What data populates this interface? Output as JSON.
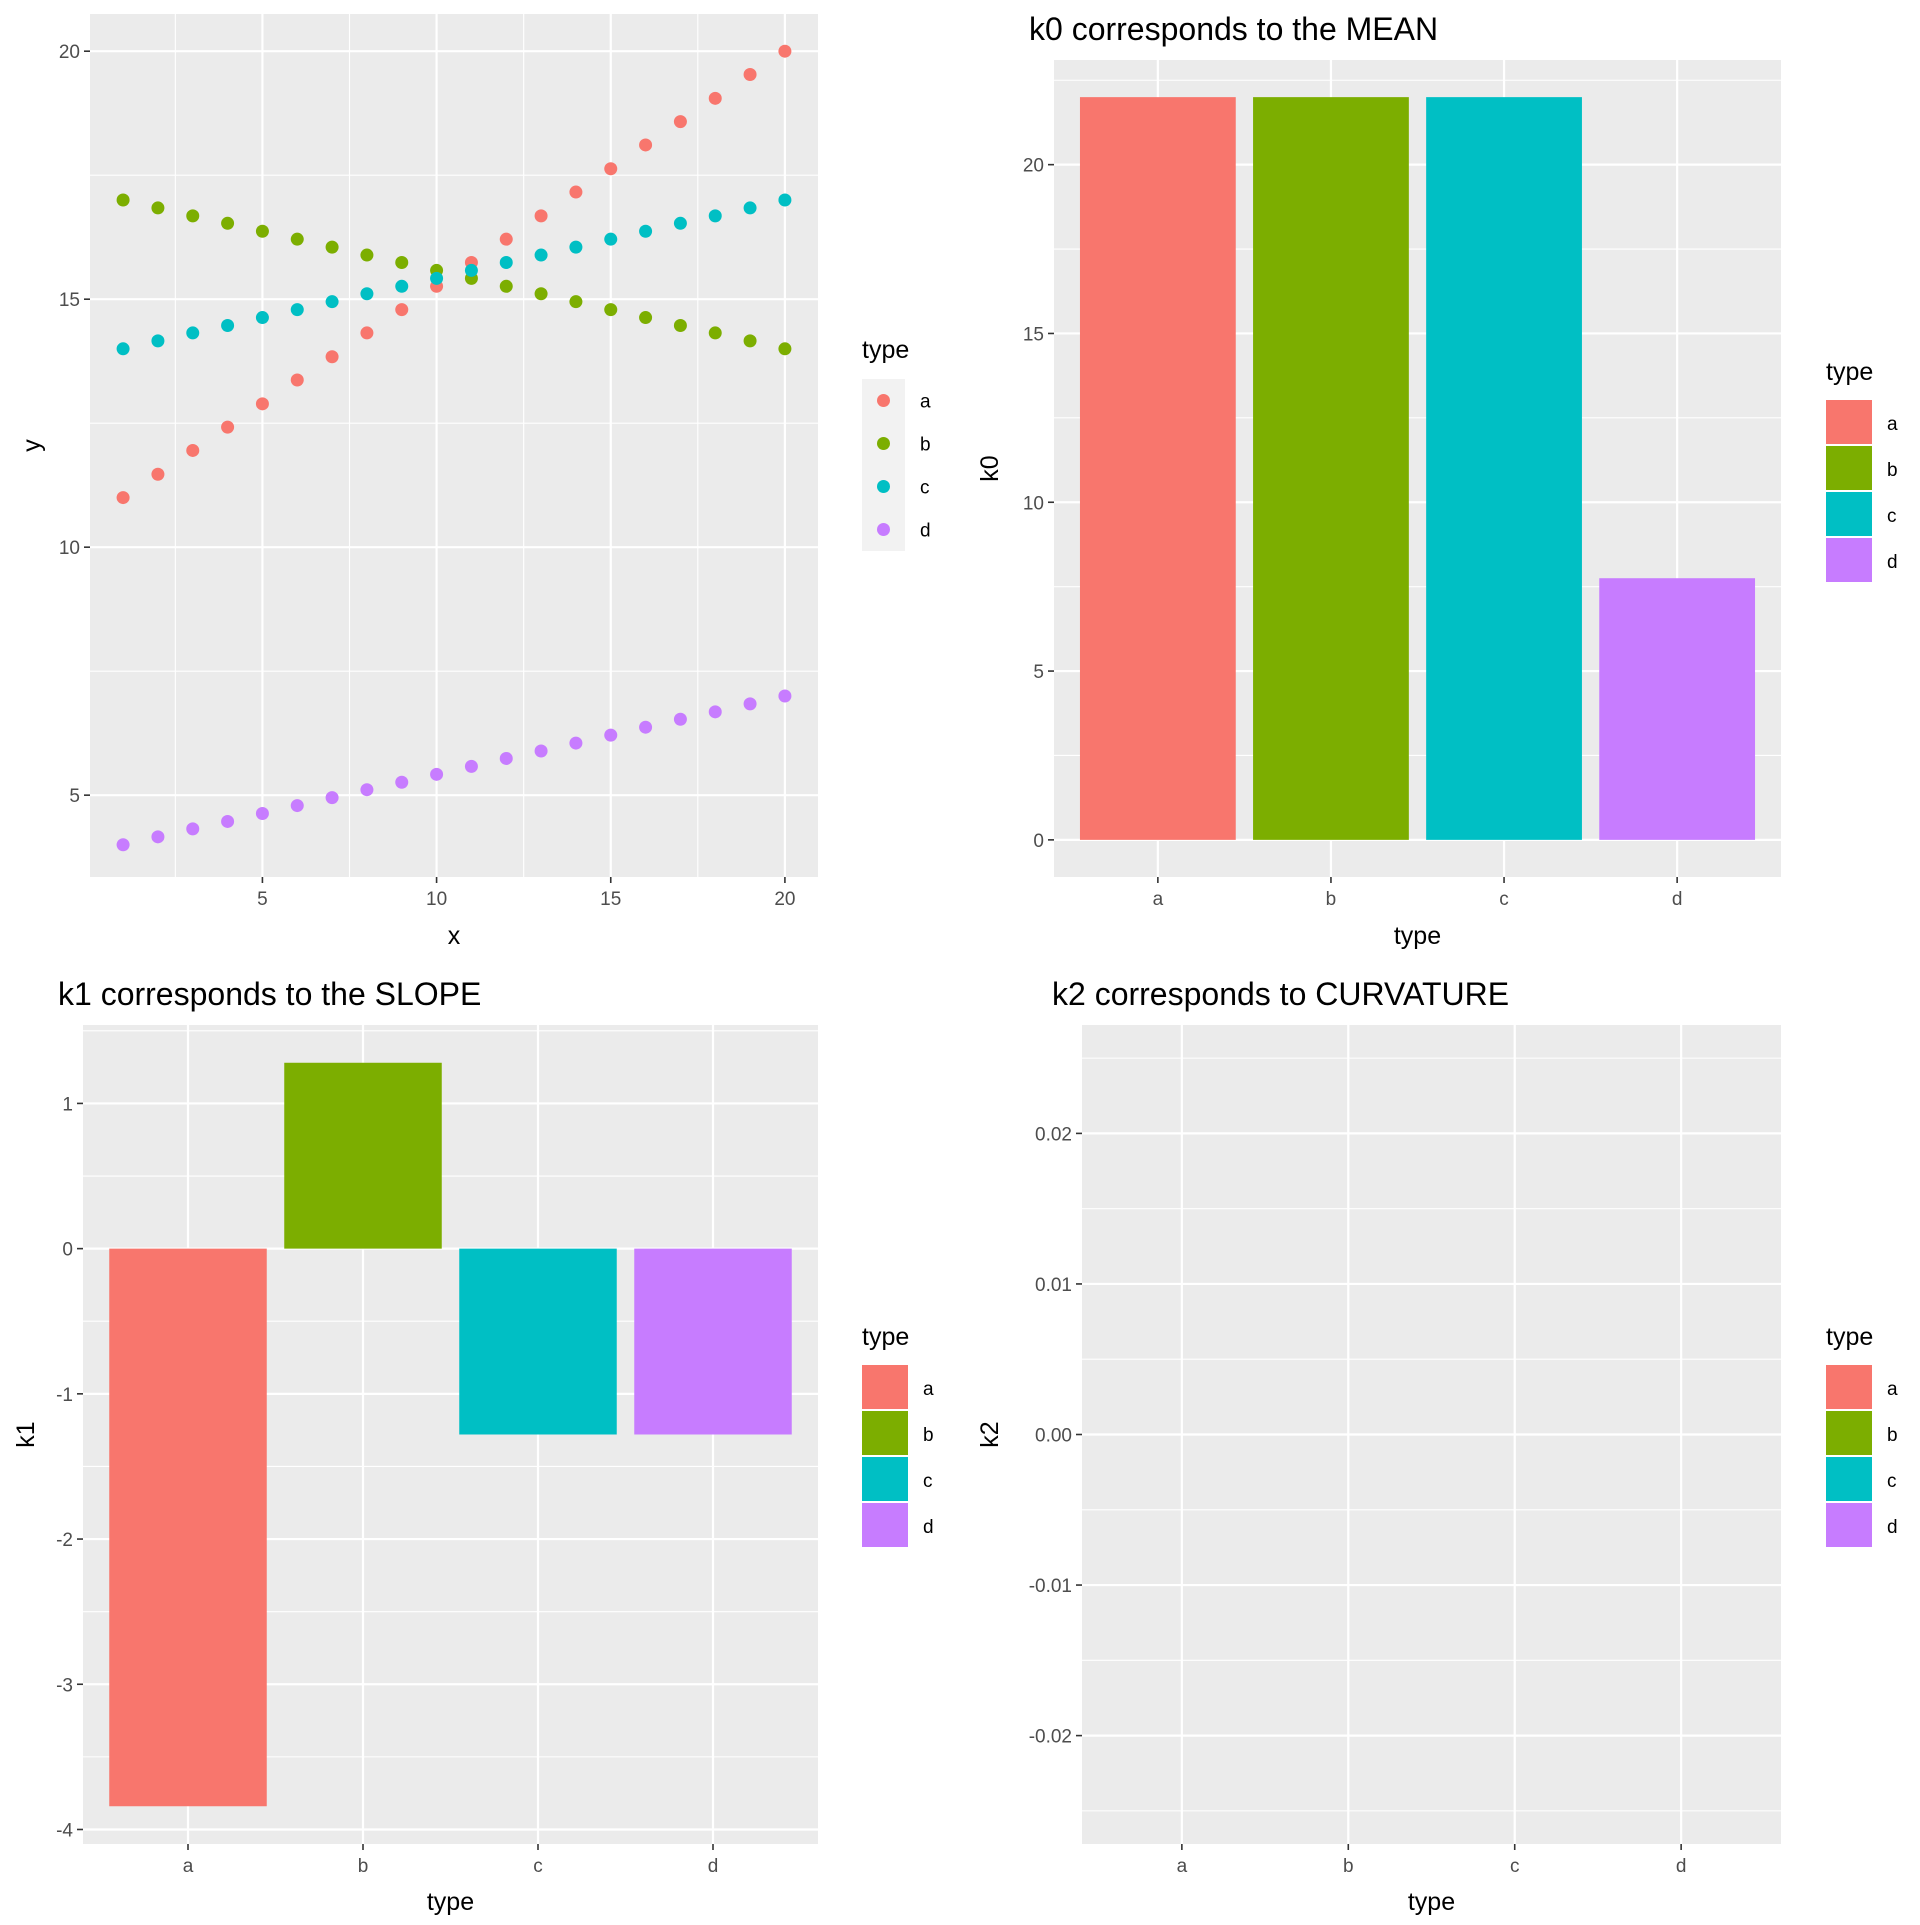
{
  "colors": {
    "a": "#F8766D",
    "b": "#7CAE00",
    "c": "#00BFC4",
    "d": "#C77CFF",
    "panel": "#EBEBEB",
    "grid": "#FFFFFF",
    "key_bg": "#F2F2F2"
  },
  "chart_data": [
    {
      "type": "scatter",
      "title": "",
      "xlabel": "x",
      "ylabel": "y",
      "xlim": [
        0.05,
        20.95
      ],
      "ylim": [
        3.35,
        20.75
      ],
      "xticks": [
        5,
        10,
        15,
        20
      ],
      "yticks": [
        5,
        10,
        15,
        20
      ],
      "ytick_labels": [
        "5",
        "10",
        "15",
        "20"
      ],
      "legend": {
        "title": "type",
        "position": "right",
        "entries": [
          "a",
          "b",
          "c",
          "d"
        ]
      },
      "x": [
        1,
        2,
        3,
        4,
        5,
        6,
        7,
        8,
        9,
        10,
        11,
        12,
        13,
        14,
        15,
        16,
        17,
        18,
        19,
        20
      ],
      "series": [
        {
          "name": "a",
          "values": [
            11.0,
            11.47,
            11.95,
            12.42,
            12.89,
            13.37,
            13.84,
            14.32,
            14.79,
            15.26,
            15.74,
            16.21,
            16.68,
            17.16,
            17.63,
            18.11,
            18.58,
            19.05,
            19.53,
            20.0
          ]
        },
        {
          "name": "b",
          "values": [
            17.0,
            16.84,
            16.68,
            16.53,
            16.37,
            16.21,
            16.05,
            15.89,
            15.74,
            15.58,
            15.42,
            15.26,
            15.11,
            14.95,
            14.79,
            14.63,
            14.47,
            14.32,
            14.16,
            14.0
          ]
        },
        {
          "name": "c",
          "values": [
            14.0,
            14.16,
            14.32,
            14.47,
            14.63,
            14.79,
            14.95,
            15.11,
            15.26,
            15.42,
            15.58,
            15.74,
            15.89,
            16.05,
            16.21,
            16.37,
            16.53,
            16.68,
            16.84,
            17.0
          ]
        },
        {
          "name": "d",
          "values": [
            4.0,
            4.16,
            4.32,
            4.47,
            4.63,
            4.79,
            4.95,
            5.11,
            5.26,
            5.42,
            5.58,
            5.74,
            5.89,
            6.05,
            6.21,
            6.37,
            6.53,
            6.68,
            6.84,
            7.0
          ]
        }
      ]
    },
    {
      "type": "bar",
      "title": "k0 corresponds to the MEAN",
      "xlabel": "type",
      "ylabel": "k0",
      "categories": [
        "a",
        "b",
        "c",
        "d"
      ],
      "values": [
        22.0,
        22.0,
        22.0,
        7.75
      ],
      "ylim": [
        -1.1,
        23.1
      ],
      "yticks": [
        0,
        5,
        10,
        15,
        20
      ],
      "ytick_labels": [
        "0",
        "5",
        "10",
        "15",
        "20"
      ],
      "legend": {
        "title": "type",
        "position": "right",
        "entries": [
          "a",
          "b",
          "c",
          "d"
        ]
      }
    },
    {
      "type": "bar",
      "title": "k1 corresponds to the SLOPE",
      "xlabel": "type",
      "ylabel": "k1",
      "categories": [
        "a",
        "b",
        "c",
        "d"
      ],
      "values": [
        -3.84,
        1.28,
        -1.28,
        -1.28
      ],
      "ylim": [
        -4.1,
        1.54
      ],
      "yticks": [
        -4,
        -3,
        -2,
        -1,
        0,
        1
      ],
      "ytick_labels": [
        "-4",
        "-3",
        "-2",
        "-1",
        "0",
        "1"
      ],
      "legend": {
        "title": "type",
        "position": "right",
        "entries": [
          "a",
          "b",
          "c",
          "d"
        ]
      }
    },
    {
      "type": "bar",
      "title": "k2 corresponds to CURVATURE",
      "xlabel": "type",
      "ylabel": "k2",
      "categories": [
        "a",
        "b",
        "c",
        "d"
      ],
      "values": [
        0,
        0,
        0,
        0
      ],
      "ylim": [
        -0.0272,
        0.0272
      ],
      "yticks": [
        -0.02,
        -0.01,
        0.0,
        0.01,
        0.02
      ],
      "ytick_labels": [
        "-0.02",
        "-0.01",
        "0.00",
        "0.01",
        "0.02"
      ],
      "legend": {
        "title": "type",
        "position": "right",
        "entries": [
          "a",
          "b",
          "c",
          "d"
        ]
      }
    }
  ]
}
